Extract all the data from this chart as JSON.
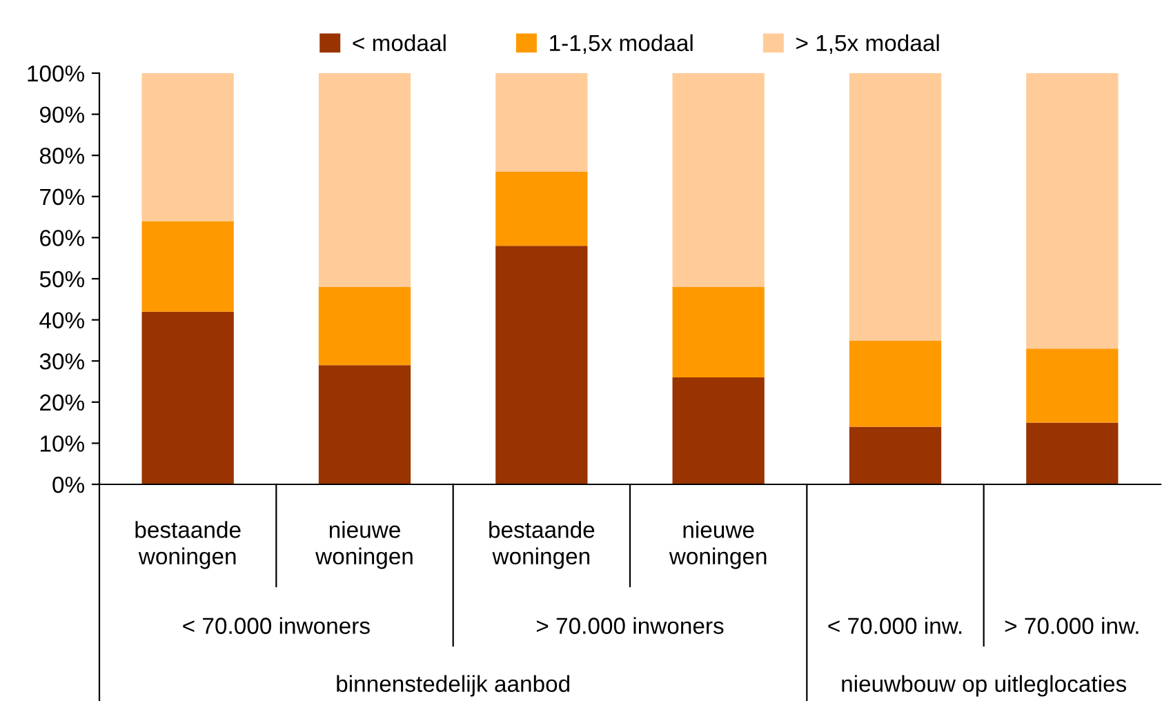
{
  "chart_data": {
    "type": "bar",
    "stacked": true,
    "categories": [
      "bestaande\nwoningen",
      "nieuwe\nwoningen",
      "bestaande\nwoningen",
      "nieuwe\nwoningen",
      null,
      null
    ],
    "series": [
      {
        "name": "< modaal",
        "color": "#993300",
        "values": [
          42,
          29,
          58,
          26,
          14,
          15
        ]
      },
      {
        "name": "1-1,5x modaal",
        "color": "#ff9900",
        "values": [
          22,
          19,
          18,
          22,
          21,
          18
        ]
      },
      {
        "name": "> 1,5x modaal",
        "color": "#ffcc99",
        "values": [
          36,
          52,
          24,
          52,
          65,
          67
        ]
      }
    ],
    "ylim": [
      0,
      100
    ],
    "yticks": [
      {
        "value": 0,
        "label": "0%"
      },
      {
        "value": 10,
        "label": "10%"
      },
      {
        "value": 20,
        "label": "20%"
      },
      {
        "value": 30,
        "label": "30%"
      },
      {
        "value": 40,
        "label": "40%"
      },
      {
        "value": 50,
        "label": "50%"
      },
      {
        "value": 60,
        "label": "60%"
      },
      {
        "value": 70,
        "label": "70%"
      },
      {
        "value": 80,
        "label": "80%"
      },
      {
        "value": 90,
        "label": "90%"
      },
      {
        "value": 100,
        "label": "100%"
      }
    ],
    "grid": false,
    "legend": "top",
    "annotations": [
      "< 70.000 inwoners",
      "> 70.000 inwoners",
      "< 70.000 inw.",
      "> 70.000 inw.",
      "binnenstedelijk aanbod",
      "nieuwbouw op uitleglocaties"
    ]
  }
}
